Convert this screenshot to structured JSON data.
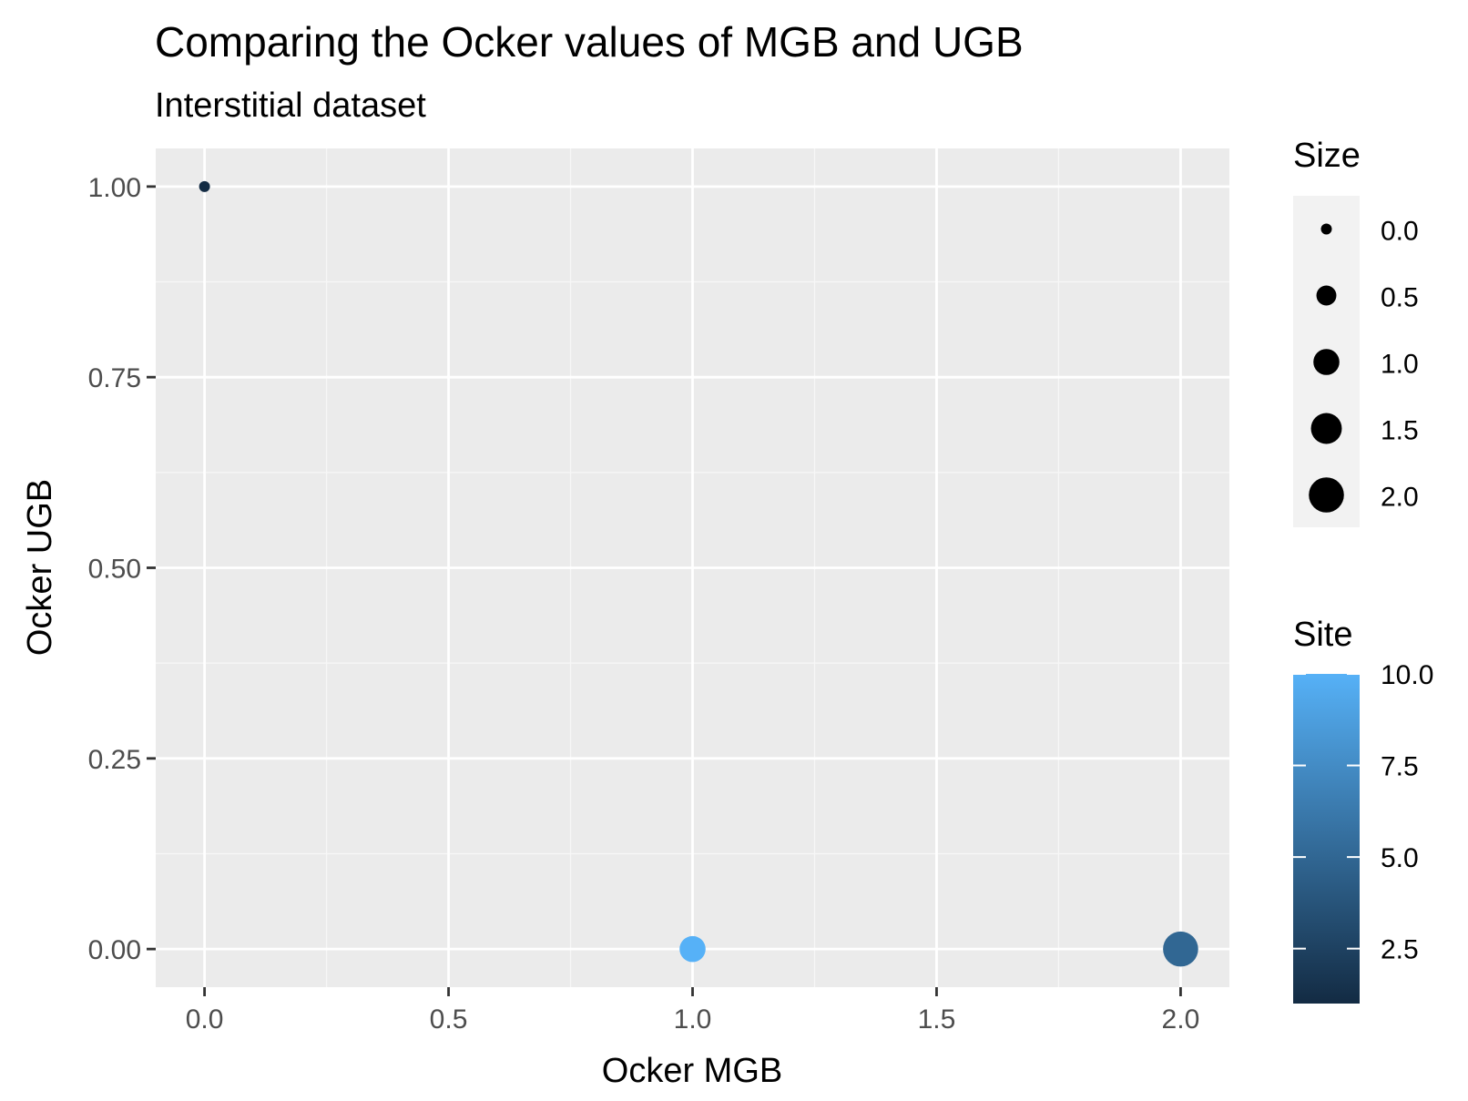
{
  "chart_data": {
    "type": "scatter",
    "title": "Comparing the Ocker values of MGB and UGB",
    "subtitle": "Interstitial dataset",
    "xlabel": "Ocker MGB",
    "ylabel": "Ocker UGB",
    "xlim": [
      -0.1,
      2.1
    ],
    "ylim": [
      -0.05,
      1.05
    ],
    "x_ticks": [
      0.0,
      0.5,
      1.0,
      1.5,
      2.0
    ],
    "x_tick_labels": [
      "0.0",
      "0.5",
      "1.0",
      "1.5",
      "2.0"
    ],
    "y_ticks": [
      0.0,
      0.25,
      0.5,
      0.75,
      1.0
    ],
    "y_tick_labels": [
      "0.00",
      "0.25",
      "0.50",
      "0.75",
      "1.00"
    ],
    "grid": true,
    "points": [
      {
        "x": 0.0,
        "y": 1.0,
        "size": 0.0,
        "site": 1.0
      },
      {
        "x": 1.0,
        "y": 0.0,
        "size": 1.0,
        "site": 10.0
      },
      {
        "x": 2.0,
        "y": 0.0,
        "size": 2.0,
        "site": 5.0
      }
    ],
    "legend_size": {
      "title": "Size",
      "values": [
        0.0,
        0.5,
        1.0,
        1.5,
        2.0
      ],
      "labels": [
        "0.0",
        "0.5",
        "1.0",
        "1.5",
        "2.0"
      ]
    },
    "legend_color": {
      "title": "Site",
      "range": [
        1.0,
        10.0
      ],
      "ticks": [
        2.5,
        5.0,
        7.5,
        10.0
      ],
      "labels": [
        "2.5",
        "5.0",
        "7.5",
        "10.0"
      ],
      "low_color": "#132B43",
      "high_color": "#56B1F7"
    },
    "legend_placement": "right",
    "colors": {
      "panel_background": "#EBEBEB",
      "grid_major": "#FFFFFF",
      "grid_minor": "#F7F7F7",
      "tick_label": "#4D4D4D",
      "axis_tick": "#333333",
      "text": "#000000",
      "legend_key_background": "#F2F2F2"
    }
  }
}
